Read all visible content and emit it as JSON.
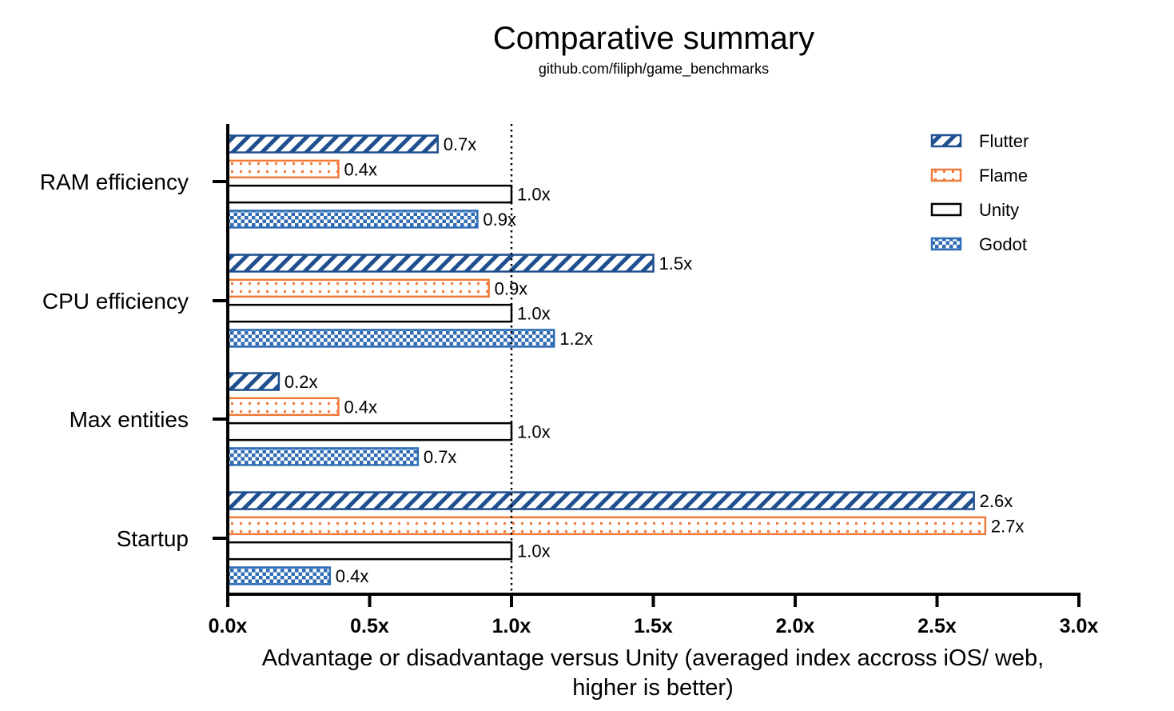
{
  "chart_data": {
    "type": "bar",
    "orientation": "horizontal",
    "title": "Comparative summary",
    "subtitle": "github.com/filiph/game_benchmarks",
    "xlabel": "Advantage or disadvantage versus Unity (averaged index accross iOS/ web, higher is better)",
    "ylabel": "",
    "xlim": [
      0,
      3
    ],
    "xticks": [
      "0.0x",
      "0.5x",
      "1.0x",
      "1.5x",
      "2.0x",
      "2.5x",
      "3.0x"
    ],
    "reference_line": 1.0,
    "categories": [
      "RAM efficiency",
      "CPU efficiency",
      "Max entities",
      "Startup"
    ],
    "series": [
      {
        "name": "Flutter",
        "values": [
          0.74,
          1.5,
          0.18,
          2.63
        ],
        "labels": [
          "0.7x",
          "1.5x",
          "0.2x",
          "2.6x"
        ],
        "pattern": "diagonal",
        "color": "#1f4f8f"
      },
      {
        "name": "Flame",
        "values": [
          0.39,
          0.92,
          0.39,
          2.67
        ],
        "labels": [
          "0.4x",
          "0.9x",
          "0.4x",
          "2.7x"
        ],
        "pattern": "dots",
        "color": "#f07a3a"
      },
      {
        "name": "Unity",
        "values": [
          1.0,
          1.0,
          1.0,
          1.0
        ],
        "labels": [
          "1.0x",
          "1.0x",
          "1.0x",
          "1.0x"
        ],
        "pattern": "none",
        "color": "#000000"
      },
      {
        "name": "Godot",
        "values": [
          0.88,
          1.15,
          0.67,
          0.36
        ],
        "labels": [
          "0.9x",
          "1.2x",
          "0.7x",
          "0.4x"
        ],
        "pattern": "checker",
        "color": "#2f6db5"
      }
    ],
    "legend_position": "top-right",
    "grid": false
  }
}
